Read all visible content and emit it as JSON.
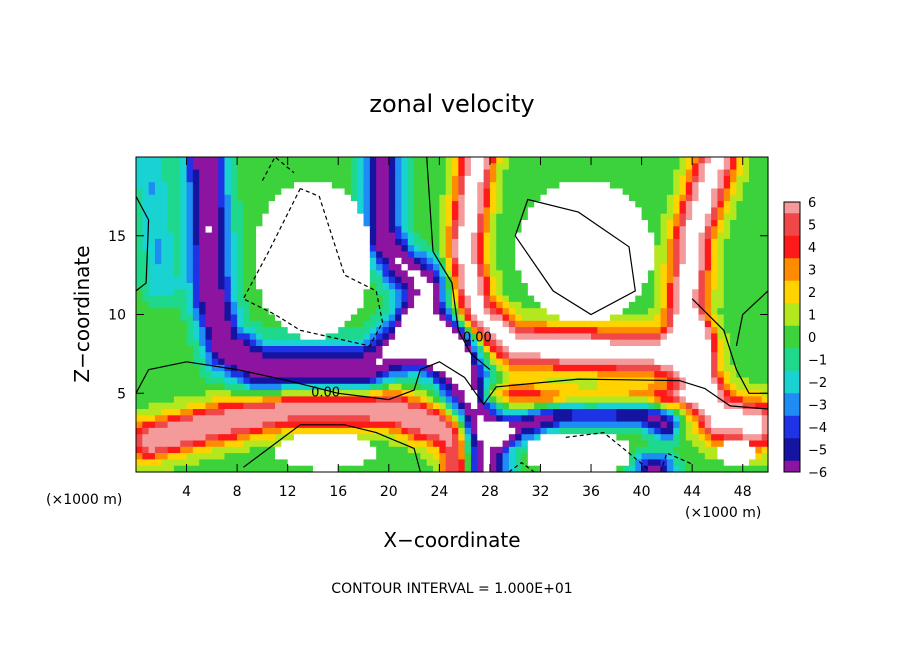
{
  "chart_data": {
    "type": "heatmap",
    "title": "zonal velocity",
    "xlabel": "X−coordinate",
    "ylabel": "Z−coordinate",
    "x_units_left": "(×1000 m)",
    "x_units_right": "(×1000 m)",
    "footer": "CONTOUR INTERVAL = 1.000E+01",
    "xlim": [
      0,
      50
    ],
    "ylim": [
      0,
      20
    ],
    "x_ticks": [
      4,
      8,
      12,
      16,
      20,
      24,
      28,
      32,
      36,
      40,
      44,
      48
    ],
    "x_tick_labels": [
      "4",
      "8",
      "12",
      "16",
      "20",
      "24",
      "28",
      "32",
      "36",
      "40",
      "44",
      "48"
    ],
    "y_ticks": [
      5,
      10,
      15
    ],
    "y_tick_labels": [
      "5",
      "10",
      "15"
    ],
    "contour_labels": [
      {
        "text": "0.00",
        "x": 15.0,
        "y": 4.8
      },
      {
        "text": "0.00",
        "x": 27.0,
        "y": 8.3
      }
    ],
    "colorbar": {
      "levels": [
        6,
        5,
        4,
        3,
        2,
        1,
        0,
        -1,
        -2,
        -3,
        -4,
        -5,
        -6
      ],
      "labels": [
        "6",
        "5",
        "4",
        "3",
        "2",
        "1",
        "0",
        "−1",
        "−2",
        "−3",
        "−4",
        "−5",
        "−6"
      ],
      "colors": [
        "#f49a9a",
        "#f04848",
        "#ff1a1a",
        "#ff8c00",
        "#ffd200",
        "#b4e81e",
        "#3cd23c",
        "#1ed88c",
        "#19d2d2",
        "#1e8cf5",
        "#1e32e6",
        "#1414a0",
        "#8c14a0"
      ]
    },
    "palette_anchors": [
      {
        "v": -6,
        "c": "#8c14a0"
      },
      {
        "v": -5,
        "c": "#1414a0"
      },
      {
        "v": -4,
        "c": "#1e32e6"
      },
      {
        "v": -3,
        "c": "#1e8cf5"
      },
      {
        "v": -2,
        "c": "#19d2d2"
      },
      {
        "v": -1,
        "c": "#1ed88c"
      },
      {
        "v": 0,
        "c": "#3cd23c"
      },
      {
        "v": 1,
        "c": "#b4e81e"
      },
      {
        "v": 2,
        "c": "#ffd200"
      },
      {
        "v": 3,
        "c": "#ff8c00"
      },
      {
        "v": 4,
        "c": "#ff1a1a"
      },
      {
        "v": 5,
        "c": "#f04848"
      },
      {
        "v": 6,
        "c": "#f49a9a"
      }
    ]
  }
}
